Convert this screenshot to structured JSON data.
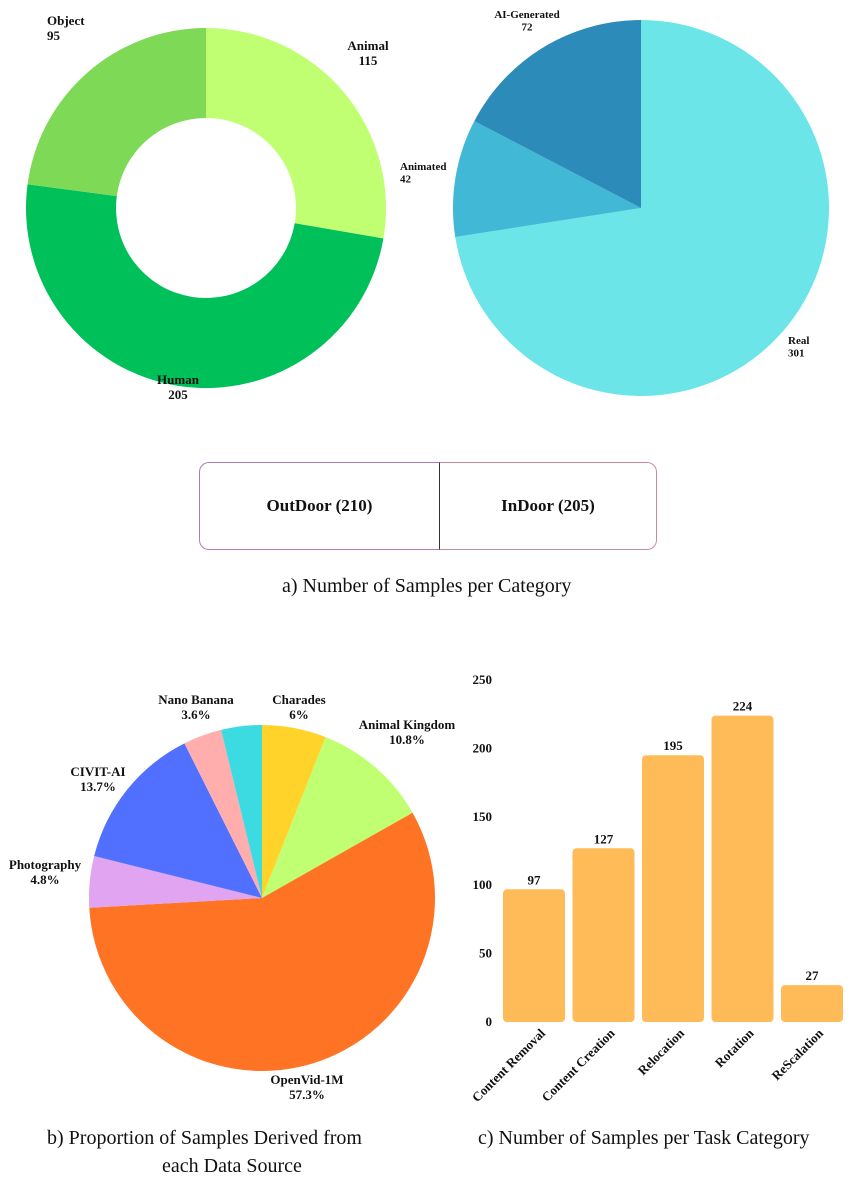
{
  "chart_data": [
    {
      "type": "pie",
      "variant": "donut",
      "slices": [
        {
          "label": "Animal",
          "value": 115,
          "color": "#c1ff72"
        },
        {
          "label": "Human",
          "value": 205,
          "color": "#00c05a"
        },
        {
          "label": "Object",
          "value": 95,
          "color": "#7ed957"
        }
      ]
    },
    {
      "type": "pie",
      "slices": [
        {
          "label": "Real",
          "value": 301,
          "color": "#6ce5e8"
        },
        {
          "label": "Animated",
          "value": 42,
          "color": "#41b8d5"
        },
        {
          "label": "AI-Generated",
          "value": 72,
          "color": "#2d8bba"
        }
      ]
    },
    {
      "type": "bar",
      "orientation": "horizontal-split",
      "segments": [
        {
          "label": "OutDoor (210)",
          "value": 210,
          "color": "#e2d5e8"
        },
        {
          "label": "InDoor (205)",
          "value": 205,
          "color": "#f7cfcc"
        }
      ]
    },
    {
      "type": "pie",
      "slices": [
        {
          "label": "Charades",
          "pct_label": "6%",
          "value": 6,
          "color": "#ffd32a"
        },
        {
          "label": "Animal Kingdom",
          "pct_label": "10.8%",
          "value": 10.8,
          "color": "#c1ff72"
        },
        {
          "label": "OpenVid-1M",
          "pct_label": "57.3%",
          "value": 57.3,
          "color": "#ff7324"
        },
        {
          "label": "Photography",
          "pct_label": "4.8%",
          "value": 4.8,
          "color": "#e0a4f0"
        },
        {
          "label": "CIVIT-AI",
          "pct_label": "13.7%",
          "value": 13.7,
          "color": "#5170ff"
        },
        {
          "label": "Nano Banana",
          "pct_label": "3.6%",
          "value": 3.6,
          "color": "#ffadad"
        },
        {
          "label": "",
          "pct_label": "",
          "value": 3.8,
          "color": "#3bdbe1"
        }
      ]
    },
    {
      "type": "bar",
      "categories": [
        "Content Removal",
        "Content Creation",
        "Relocation",
        "Rotation",
        "ReScalation"
      ],
      "values": [
        97,
        127,
        195,
        224,
        27
      ],
      "ylim": [
        0,
        250
      ],
      "yticks": [
        0,
        50,
        100,
        150,
        200,
        250
      ],
      "bar_color": "#ffbb58",
      "grid": false
    }
  ],
  "captions": {
    "a": "a)   Number of Samples per Category",
    "b_line1": "b)   Proportion of Samples Derived from",
    "b_line2": "each Data Source",
    "c": "c)   Number of Samples per Task Category"
  }
}
